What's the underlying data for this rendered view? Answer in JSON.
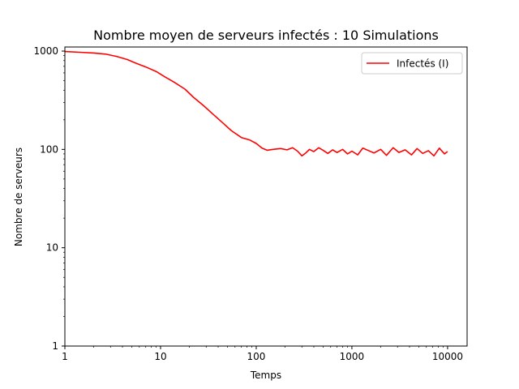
{
  "chart_data": {
    "type": "line",
    "title": "Nombre moyen de serveurs infectés : 10 Simulations",
    "xlabel": "Temps",
    "ylabel": "Nombre de serveurs",
    "xscale": "log",
    "yscale": "log",
    "xlim": [
      1,
      16000
    ],
    "ylim": [
      1,
      1100
    ],
    "xticks": [
      1,
      10,
      100,
      1000,
      10000
    ],
    "xtick_labels": [
      "1",
      "10",
      "100",
      "1000",
      "10000"
    ],
    "yticks": [
      1,
      10,
      100,
      1000
    ],
    "ytick_labels": [
      "1",
      "10",
      "100",
      "1000"
    ],
    "grid": false,
    "legend_position": "top-right",
    "series": [
      {
        "name": "Infectés (I)",
        "color": "#ff0000",
        "x": [
          1,
          1.5,
          2,
          2.7,
          3.5,
          4.5,
          5.5,
          7,
          9,
          11,
          14,
          18,
          22,
          28,
          35,
          45,
          55,
          70,
          85,
          100,
          115,
          130,
          150,
          180,
          210,
          240,
          270,
          300,
          330,
          360,
          400,
          450,
          500,
          560,
          630,
          700,
          800,
          900,
          1000,
          1150,
          1300,
          1500,
          1700,
          2000,
          2300,
          2700,
          3100,
          3600,
          4200,
          4800,
          5500,
          6300,
          7200,
          8200,
          9300,
          10000
        ],
        "y": [
          990,
          970,
          955,
          930,
          880,
          820,
          755,
          690,
          620,
          550,
          480,
          410,
          340,
          280,
          230,
          185,
          155,
          132,
          125,
          115,
          103,
          98,
          100,
          102,
          99,
          104,
          96,
          86,
          92,
          100,
          95,
          104,
          98,
          91,
          99,
          93,
          100,
          90,
          96,
          88,
          103,
          97,
          92,
          100,
          87,
          104,
          93,
          99,
          88,
          102,
          91,
          97,
          86,
          103,
          90,
          95
        ]
      }
    ]
  }
}
